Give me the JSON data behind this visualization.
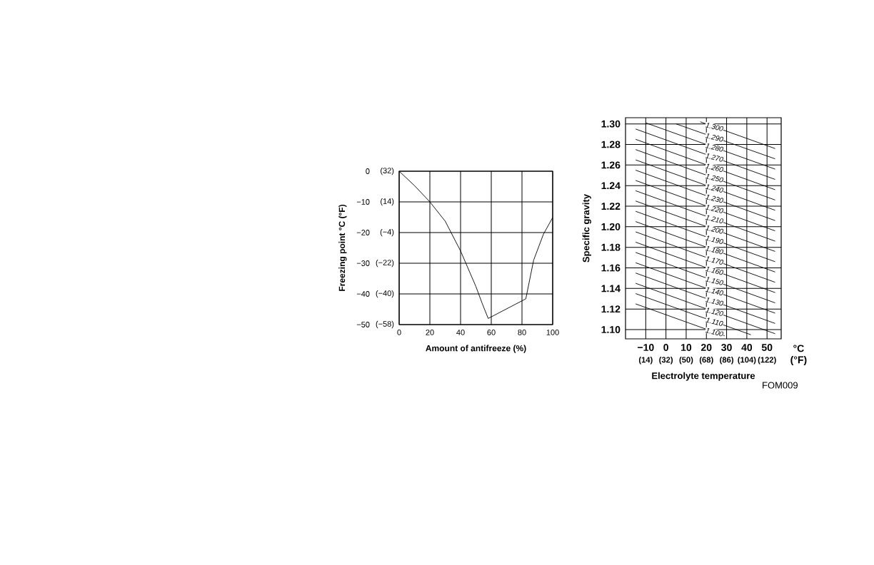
{
  "chart_data": [
    {
      "type": "line",
      "xlabel": "Amount of antifreeze  (%)",
      "ylabel": "Freezing point  °C (°F)",
      "xlim": [
        0,
        100
      ],
      "ylim": [
        -50,
        0
      ],
      "xticks": [
        0,
        20,
        40,
        60,
        80,
        100
      ],
      "yticks": [
        {
          "value": 0,
          "label": "0"
        },
        {
          "value": -10,
          "label": "−10"
        },
        {
          "value": -20,
          "label": "−20"
        },
        {
          "value": -30,
          "label": "−30"
        },
        {
          "value": -40,
          "label": "−40"
        },
        {
          "value": -50,
          "label": "−50"
        }
      ],
      "y2lim": [
        -58,
        32
      ],
      "y2ticks": [
        {
          "value": 32,
          "label": "(32)"
        },
        {
          "value": 14,
          "label": "(14)"
        },
        {
          "value": -4,
          "label": "(−4)"
        },
        {
          "value": -22,
          "label": "(−22)"
        },
        {
          "value": -40,
          "label": "(−40)"
        },
        {
          "value": -58,
          "label": "(−58)"
        }
      ],
      "grid": true,
      "series": [
        {
          "color": "#000000",
          "x": [
            0,
            10,
            20,
            30,
            40,
            50,
            54,
            58,
            82.5,
            87.6,
            94,
            100
          ],
          "values": [
            0,
            -4.7,
            -10,
            -16.3,
            -26,
            -37.6,
            -43,
            -48,
            -41.6,
            -29,
            -20.5,
            -15.1
          ]
        }
      ]
    },
    {
      "type": "line",
      "xlabel": "Electrolyte temperature",
      "ylabel": "Specific gravity",
      "xlim": [
        -20,
        57
      ],
      "ylim": [
        1.091,
        1.306
      ],
      "xticks": [
        {
          "value": -10,
          "label": "−10"
        },
        {
          "value": 0,
          "label": "0"
        },
        {
          "value": 10,
          "label": "10"
        },
        {
          "value": 20,
          "label": "20"
        },
        {
          "value": 30,
          "label": "30"
        },
        {
          "value": 40,
          "label": "40"
        },
        {
          "value": 50,
          "label": "50"
        }
      ],
      "x2lim": [
        -4,
        134.6
      ],
      "x2ticks": [
        {
          "value": 14,
          "label": "(14)"
        },
        {
          "value": 32,
          "label": "(32)"
        },
        {
          "value": 50,
          "label": "(50)"
        },
        {
          "value": 68,
          "label": "(68)"
        },
        {
          "value": 86,
          "label": "(86)"
        },
        {
          "value": 104,
          "label": "(104)"
        },
        {
          "value": 122,
          "label": "(122)"
        }
      ],
      "yticks": [
        {
          "value": 1.1,
          "label": "1.10"
        },
        {
          "value": 1.12,
          "label": "1.12"
        },
        {
          "value": 1.14,
          "label": "1.14"
        },
        {
          "value": 1.16,
          "label": "1.16"
        },
        {
          "value": 1.18,
          "label": "1.18"
        },
        {
          "value": 1.2,
          "label": "1.20"
        },
        {
          "value": 1.22,
          "label": "1.22"
        },
        {
          "value": 1.24,
          "label": "1.24"
        },
        {
          "value": 1.26,
          "label": "1.26"
        },
        {
          "value": 1.28,
          "label": "1.28"
        },
        {
          "value": 1.3,
          "label": "1.30"
        }
      ],
      "grid": true,
      "annotations": [
        "°C (°F)",
        "FOM009"
      ],
      "series": [
        {
          "name": "1.300",
          "color": "#000000",
          "x": [
            17,
            54
          ],
          "values": [
            1.302,
            1.276
          ]
        },
        {
          "name": "1.290",
          "color": "#000000",
          "x": [
            5,
            54
          ],
          "values": [
            1.3,
            1.266
          ]
        },
        {
          "name": "1.280",
          "color": "#000000",
          "x": [
            -10,
            54
          ],
          "values": [
            1.301,
            1.256
          ]
        },
        {
          "name": "1.270",
          "color": "#000000",
          "x": [
            -15,
            54
          ],
          "values": [
            1.295,
            1.246
          ]
        },
        {
          "name": "1.260",
          "color": "#000000",
          "x": [
            -15,
            54
          ],
          "values": [
            1.285,
            1.236
          ]
        },
        {
          "name": "1.250",
          "color": "#000000",
          "x": [
            -15,
            54
          ],
          "values": [
            1.275,
            1.226
          ]
        },
        {
          "name": "1.240",
          "color": "#000000",
          "x": [
            -15,
            54
          ],
          "values": [
            1.265,
            1.216
          ]
        },
        {
          "name": "1.230",
          "color": "#000000",
          "x": [
            -15,
            54
          ],
          "values": [
            1.255,
            1.206
          ]
        },
        {
          "name": "1.220",
          "color": "#000000",
          "x": [
            -15,
            54
          ],
          "values": [
            1.245,
            1.196
          ]
        },
        {
          "name": "1.210",
          "color": "#000000",
          "x": [
            -15,
            54
          ],
          "values": [
            1.235,
            1.186
          ]
        },
        {
          "name": "1.200",
          "color": "#000000",
          "x": [
            -15,
            54
          ],
          "values": [
            1.225,
            1.176
          ]
        },
        {
          "name": "1.190",
          "color": "#000000",
          "x": [
            -15,
            54
          ],
          "values": [
            1.215,
            1.166
          ]
        },
        {
          "name": "1.180",
          "color": "#000000",
          "x": [
            -15,
            54
          ],
          "values": [
            1.205,
            1.156
          ]
        },
        {
          "name": "1.170",
          "color": "#000000",
          "x": [
            -15,
            54
          ],
          "values": [
            1.195,
            1.146
          ]
        },
        {
          "name": "1.160",
          "color": "#000000",
          "x": [
            -15,
            54
          ],
          "values": [
            1.185,
            1.136
          ]
        },
        {
          "name": "1.150",
          "color": "#000000",
          "x": [
            -15,
            54
          ],
          "values": [
            1.175,
            1.126
          ]
        },
        {
          "name": "1.140",
          "color": "#000000",
          "x": [
            -15,
            54
          ],
          "values": [
            1.165,
            1.116
          ]
        },
        {
          "name": "1.130",
          "color": "#000000",
          "x": [
            -15,
            54
          ],
          "values": [
            1.155,
            1.106
          ]
        },
        {
          "name": "1.120",
          "color": "#000000",
          "x": [
            -15,
            54
          ],
          "values": [
            1.145,
            1.096
          ]
        },
        {
          "name": "1.110",
          "color": "#000000",
          "x": [
            -15,
            42
          ],
          "values": [
            1.135,
            1.095
          ]
        },
        {
          "name": "1.100",
          "color": "#000000",
          "x": [
            -15,
            29
          ],
          "values": [
            1.125,
            1.094
          ]
        }
      ]
    }
  ]
}
